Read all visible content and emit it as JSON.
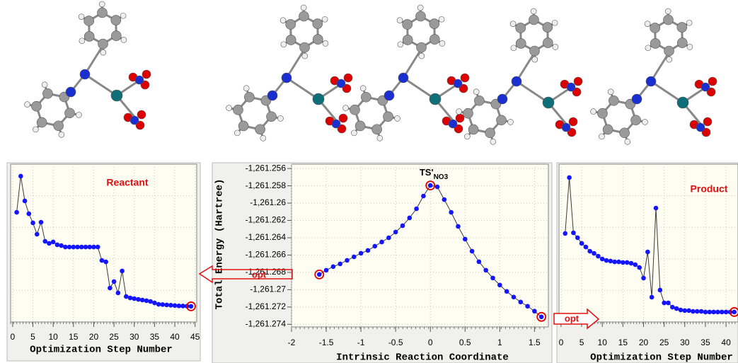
{
  "chart_data": [
    {
      "type": "line",
      "title": "Reactant",
      "xlabel": "Optimization Step Number",
      "x": [
        1,
        2,
        3,
        4,
        5,
        6,
        7,
        8,
        9,
        10,
        11,
        12,
        13,
        14,
        15,
        16,
        17,
        18,
        19,
        20,
        21,
        22,
        23,
        24,
        25,
        26,
        27,
        28,
        29,
        30,
        31,
        32,
        33,
        34,
        35,
        36,
        37,
        38,
        39,
        40,
        41,
        42,
        43,
        44
      ],
      "series": [
        {
          "values": [
            6.95,
            9.24,
            7.67,
            6.86,
            6.28,
            5.56,
            6.32,
            5.11,
            4.98,
            5.07,
            4.89,
            4.84,
            4.75,
            4.75,
            4.75,
            4.75,
            4.75,
            4.75,
            4.75,
            4.75,
            4.75,
            3.9,
            3.81,
            2.15,
            2.56,
            1.84,
            3.23,
            1.61,
            1.52,
            1.48,
            1.43,
            1.39,
            1.35,
            1.3,
            1.21,
            1.12,
            1.1,
            1.08,
            1.06,
            1.04,
            1.02,
            1.01,
            1.0,
            0.99
          ],
          "marker_color": "#1414ff",
          "line_color": "#3a3a3a"
        }
      ],
      "highlight": [
        43
      ],
      "highlight_color": "#e00000",
      "xlim": [
        -0.5,
        45.4
      ],
      "ylim": [
        0,
        10
      ],
      "xticks": [
        0,
        5,
        10,
        15,
        20,
        25,
        30,
        35,
        40,
        45
      ],
      "grid": true
    },
    {
      "type": "line",
      "annotation": "TS'",
      "annotation_sub": "NO3",
      "xlabel": "Intrinsic Reaction Coordinate",
      "ylabel": "Total Energy (Hartree)",
      "x": [
        -1.6,
        -1.5,
        -1.4,
        -1.3,
        -1.2,
        -1.1,
        -1.0,
        -0.9,
        -0.8,
        -0.7,
        -0.6,
        -0.5,
        -0.4,
        -0.3,
        -0.2,
        -0.1,
        0,
        0.1,
        0.2,
        0.3,
        0.4,
        0.5,
        0.6,
        0.7,
        0.8,
        0.9,
        1.0,
        1.1,
        1.2,
        1.3,
        1.4,
        1.5,
        1.6
      ],
      "series": [
        {
          "values": [
            -1261.26824,
            -1261.26775,
            -1261.26734,
            -1261.26702,
            -1261.26661,
            -1261.2662,
            -1261.26579,
            -1261.26547,
            -1261.26498,
            -1261.26449,
            -1261.264,
            -1261.26334,
            -1261.26261,
            -1261.26171,
            -1261.26065,
            -1261.25918,
            -1261.25796,
            -1261.25812,
            -1261.25959,
            -1261.26106,
            -1261.26269,
            -1261.26416,
            -1261.26555,
            -1261.26677,
            -1261.26775,
            -1261.26865,
            -1261.26946,
            -1261.2702,
            -1261.27085,
            -1261.27142,
            -1261.27191,
            -1261.27248,
            -1261.27314
          ],
          "marker_color": "#1414ff",
          "line_color": "#3a3a3a"
        }
      ],
      "highlight": [
        0,
        16,
        32
      ],
      "highlight_color": "#e00000",
      "xlim": [
        -2,
        1.7
      ],
      "ylim": [
        -1261.2743,
        -1261.2555
      ],
      "xticks": [
        -2,
        -1.5,
        -1,
        -0.5,
        0,
        0.5,
        1,
        1.5
      ],
      "yticks": [
        {
          "value": -1261.256,
          "label": "-1,261.256"
        },
        {
          "value": -1261.258,
          "label": "-1,261.258"
        },
        {
          "value": -1261.26,
          "label": "-1,261.26"
        },
        {
          "value": -1261.262,
          "label": "-1,261.262"
        },
        {
          "value": -1261.264,
          "label": "-1,261.264"
        },
        {
          "value": -1261.266,
          "label": "-1,261.266"
        },
        {
          "value": -1261.268,
          "label": "-1,261.268"
        },
        {
          "value": -1261.27,
          "label": "-1,261.27"
        },
        {
          "value": -1261.272,
          "label": "-1,261.272"
        },
        {
          "value": -1261.274,
          "label": "-1,261.274"
        }
      ],
      "grid": true,
      "arrow_left_label": "opt",
      "arrow_right_label": "opt"
    },
    {
      "type": "line",
      "title": "Product",
      "xlabel": "Optimization Step Number",
      "x": [
        1,
        2,
        3,
        4,
        5,
        6,
        7,
        8,
        9,
        10,
        11,
        12,
        13,
        14,
        15,
        16,
        17,
        18,
        19,
        20,
        21,
        22,
        23,
        24,
        25,
        26,
        27,
        28,
        29,
        30,
        31,
        32,
        33,
        34,
        35,
        36,
        37,
        38,
        39,
        40,
        41,
        42
      ],
      "series": [
        {
          "values": [
            5.61,
            9.15,
            5.65,
            5.34,
            4.98,
            4.75,
            4.48,
            4.35,
            4.17,
            3.99,
            3.9,
            3.86,
            3.81,
            3.81,
            3.77,
            3.77,
            3.72,
            3.63,
            3.45,
            2.78,
            4.44,
            1.57,
            7.22,
            2.02,
            1.21,
            1.21,
            0.94,
            0.85,
            0.76,
            0.72,
            0.72,
            0.67,
            0.67,
            0.67,
            0.63,
            0.63,
            0.63,
            0.63,
            0.63,
            0.63,
            0.63,
            0.63
          ],
          "marker_color": "#1414ff",
          "line_color": "#3a3a3a"
        }
      ],
      "highlight": [
        41
      ],
      "highlight_color": "#e00000",
      "xlim": [
        -0.5,
        42.9
      ],
      "ylim": [
        0,
        10
      ],
      "xticks": [
        0,
        5,
        10,
        15,
        20,
        25,
        30,
        35,
        40
      ],
      "grid": true
    }
  ]
}
